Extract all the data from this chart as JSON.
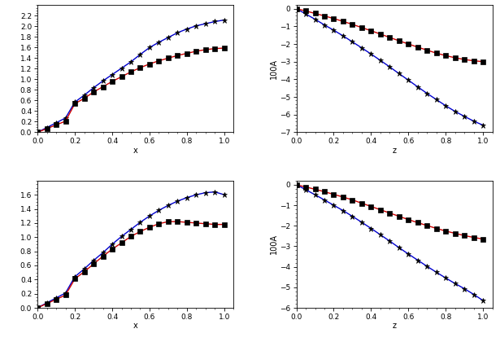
{
  "subplots": [
    {
      "xlabel": "x",
      "ylabel": "",
      "xlim": [
        0,
        1.05
      ],
      "ylim": [
        0,
        2.4
      ],
      "yticks": [
        0,
        0.2,
        0.4,
        0.6,
        0.8,
        1.0,
        1.2,
        1.4,
        1.6,
        1.8,
        2.0,
        2.2
      ],
      "xticks": [
        0,
        0.2,
        0.4,
        0.6,
        0.8,
        1.0
      ],
      "blue_x": [
        0.0,
        0.05,
        0.1,
        0.15,
        0.2,
        0.25,
        0.3,
        0.35,
        0.4,
        0.45,
        0.5,
        0.55,
        0.6,
        0.65,
        0.7,
        0.75,
        0.8,
        0.85,
        0.9,
        0.95,
        1.0
      ],
      "blue_y": [
        0.0,
        0.09,
        0.18,
        0.27,
        0.57,
        0.7,
        0.84,
        0.97,
        1.09,
        1.21,
        1.33,
        1.47,
        1.6,
        1.7,
        1.79,
        1.88,
        1.95,
        2.01,
        2.05,
        2.09,
        2.12
      ],
      "red_x": [
        0.0,
        0.05,
        0.1,
        0.15,
        0.2,
        0.25,
        0.3,
        0.35,
        0.4,
        0.45,
        0.5,
        0.55,
        0.6,
        0.65,
        0.7,
        0.75,
        0.8,
        0.85,
        0.9,
        0.95,
        1.0
      ],
      "red_y": [
        0.0,
        0.07,
        0.14,
        0.21,
        0.54,
        0.64,
        0.76,
        0.86,
        0.96,
        1.05,
        1.14,
        1.22,
        1.29,
        1.35,
        1.4,
        1.45,
        1.49,
        1.53,
        1.56,
        1.58,
        1.59
      ]
    },
    {
      "xlabel": "z",
      "ylabel": "100A",
      "xlim": [
        0,
        1.05
      ],
      "ylim": [
        -7,
        0.2
      ],
      "yticks": [
        -7,
        -6,
        -5,
        -4,
        -3,
        -2,
        -1,
        0
      ],
      "xticks": [
        0,
        0.2,
        0.4,
        0.6,
        0.8,
        1.0
      ],
      "blue_x": [
        0.0,
        0.05,
        0.1,
        0.15,
        0.2,
        0.25,
        0.3,
        0.35,
        0.4,
        0.45,
        0.5,
        0.55,
        0.6,
        0.65,
        0.7,
        0.75,
        0.8,
        0.85,
        0.9,
        0.95,
        1.0
      ],
      "blue_y": [
        0.0,
        -0.3,
        -0.6,
        -0.92,
        -1.22,
        -1.54,
        -1.88,
        -2.22,
        -2.57,
        -2.93,
        -3.3,
        -3.68,
        -4.05,
        -4.43,
        -4.8,
        -5.15,
        -5.5,
        -5.82,
        -6.1,
        -6.37,
        -6.6
      ],
      "red_x": [
        0.0,
        0.05,
        0.1,
        0.15,
        0.2,
        0.25,
        0.3,
        0.35,
        0.4,
        0.45,
        0.5,
        0.55,
        0.6,
        0.65,
        0.7,
        0.75,
        0.8,
        0.85,
        0.9,
        0.95,
        1.0
      ],
      "red_y": [
        0.0,
        -0.13,
        -0.27,
        -0.41,
        -0.56,
        -0.72,
        -0.89,
        -1.07,
        -1.25,
        -1.44,
        -1.63,
        -1.82,
        -2.0,
        -2.18,
        -2.35,
        -2.52,
        -2.66,
        -2.78,
        -2.88,
        -2.95,
        -3.0
      ]
    },
    {
      "xlabel": "x",
      "ylabel": "",
      "xlim": [
        0,
        1.05
      ],
      "ylim": [
        0,
        1.8
      ],
      "yticks": [
        0,
        0.2,
        0.4,
        0.6,
        0.8,
        1.0,
        1.2,
        1.4,
        1.6
      ],
      "xticks": [
        0,
        0.2,
        0.4,
        0.6,
        0.8,
        1.0
      ],
      "blue_x": [
        0.0,
        0.05,
        0.1,
        0.15,
        0.2,
        0.25,
        0.3,
        0.35,
        0.4,
        0.45,
        0.5,
        0.55,
        0.6,
        0.65,
        0.7,
        0.75,
        0.8,
        0.85,
        0.9,
        0.95,
        1.0
      ],
      "blue_y": [
        0.0,
        0.07,
        0.14,
        0.21,
        0.44,
        0.55,
        0.67,
        0.78,
        0.9,
        1.01,
        1.11,
        1.21,
        1.3,
        1.38,
        1.45,
        1.51,
        1.56,
        1.6,
        1.63,
        1.64,
        1.6
      ],
      "red_x": [
        0.0,
        0.05,
        0.1,
        0.15,
        0.2,
        0.25,
        0.3,
        0.35,
        0.4,
        0.45,
        0.5,
        0.55,
        0.6,
        0.65,
        0.7,
        0.75,
        0.8,
        0.85,
        0.9,
        0.95,
        1.0
      ],
      "red_y": [
        0.0,
        0.06,
        0.12,
        0.18,
        0.41,
        0.51,
        0.62,
        0.73,
        0.83,
        0.92,
        1.01,
        1.08,
        1.14,
        1.19,
        1.22,
        1.22,
        1.21,
        1.2,
        1.19,
        1.18,
        1.18
      ]
    },
    {
      "xlabel": "z",
      "ylabel": "100A",
      "xlim": [
        0,
        1.05
      ],
      "ylim": [
        -6,
        0.2
      ],
      "yticks": [
        -6,
        -5,
        -4,
        -3,
        -2,
        -1,
        0
      ],
      "xticks": [
        0,
        0.2,
        0.4,
        0.6,
        0.8,
        1.0
      ],
      "blue_x": [
        0.0,
        0.05,
        0.1,
        0.15,
        0.2,
        0.25,
        0.3,
        0.35,
        0.4,
        0.45,
        0.5,
        0.55,
        0.6,
        0.65,
        0.7,
        0.75,
        0.8,
        0.85,
        0.9,
        0.95,
        1.0
      ],
      "blue_y": [
        0.0,
        -0.24,
        -0.49,
        -0.74,
        -1.0,
        -1.26,
        -1.54,
        -1.83,
        -2.13,
        -2.44,
        -2.75,
        -3.07,
        -3.38,
        -3.68,
        -3.98,
        -4.27,
        -4.55,
        -4.82,
        -5.07,
        -5.35,
        -5.65
      ],
      "red_x": [
        0.0,
        0.05,
        0.1,
        0.15,
        0.2,
        0.25,
        0.3,
        0.35,
        0.4,
        0.45,
        0.5,
        0.55,
        0.6,
        0.65,
        0.7,
        0.75,
        0.8,
        0.85,
        0.9,
        0.95,
        1.0
      ],
      "red_y": [
        0.0,
        -0.11,
        -0.22,
        -0.34,
        -0.47,
        -0.6,
        -0.74,
        -0.9,
        -1.06,
        -1.22,
        -1.38,
        -1.54,
        -1.7,
        -1.85,
        -1.99,
        -2.13,
        -2.26,
        -2.37,
        -2.48,
        -2.57,
        -2.65
      ]
    }
  ],
  "blue_color": "#0000cc",
  "red_color": "#cc0000",
  "marker_color": "black",
  "blue_marker": "*",
  "red_marker": "s",
  "blue_marker_size": 5,
  "red_marker_size": 4,
  "line_width": 1.0
}
